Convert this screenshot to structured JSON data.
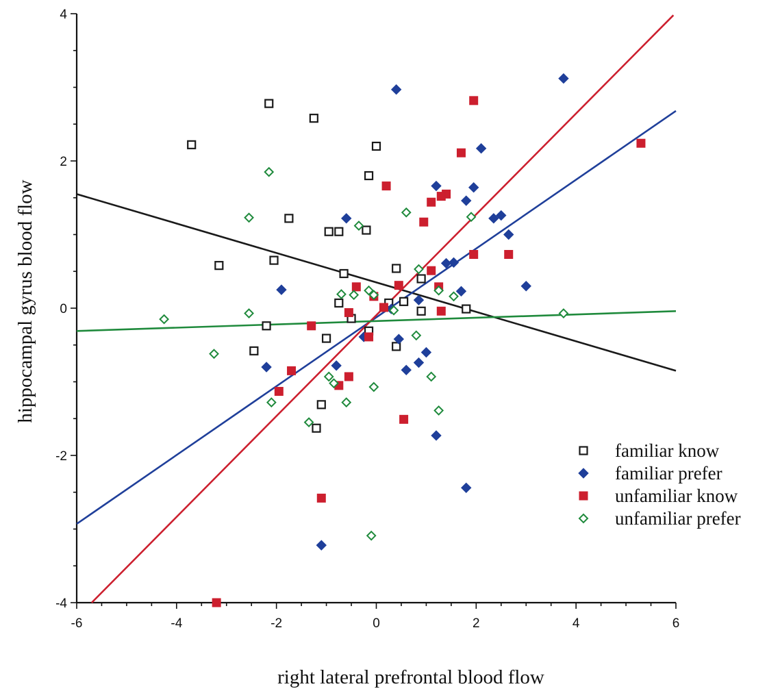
{
  "chart_data": {
    "type": "scatter",
    "xlabel": "right lateral prefrontal blood flow",
    "ylabel": "hippocampal gyrus blood flow",
    "xlim": [
      -6,
      6
    ],
    "ylim": [
      -4,
      4
    ],
    "x_ticks": [
      -6,
      -4,
      -2,
      0,
      2,
      4,
      6
    ],
    "y_ticks": [
      -4,
      -2,
      0,
      2,
      4
    ],
    "grid": false,
    "legend_position": "bottom-right",
    "series": [
      {
        "name": "familiar know",
        "marker": "open-square",
        "color": "#1a1a1a",
        "fit_line": [
          [
            -6,
            1.55
          ],
          [
            6,
            -0.85
          ]
        ],
        "points": [
          [
            -3.7,
            2.22
          ],
          [
            -2.15,
            2.78
          ],
          [
            -1.25,
            2.58
          ],
          [
            0.0,
            2.2
          ],
          [
            -0.15,
            1.8
          ],
          [
            -1.75,
            1.22
          ],
          [
            -0.95,
            1.04
          ],
          [
            -0.75,
            1.04
          ],
          [
            -0.2,
            1.06
          ],
          [
            -3.15,
            0.58
          ],
          [
            -2.05,
            0.65
          ],
          [
            0.4,
            0.54
          ],
          [
            -0.65,
            0.47
          ],
          [
            0.9,
            0.4
          ],
          [
            -0.75,
            0.07
          ],
          [
            0.25,
            0.07
          ],
          [
            0.55,
            0.09
          ],
          [
            0.9,
            -0.04
          ],
          [
            1.8,
            -0.01
          ],
          [
            -0.5,
            -0.14
          ],
          [
            -2.2,
            -0.24
          ],
          [
            -1.0,
            -0.41
          ],
          [
            -0.15,
            -0.31
          ],
          [
            0.4,
            -0.52
          ],
          [
            -2.45,
            -0.58
          ],
          [
            -1.1,
            -1.31
          ],
          [
            -1.2,
            -1.63
          ]
        ]
      },
      {
        "name": "familiar prefer",
        "marker": "filled-diamond",
        "color": "#1f3f9a",
        "fit_line": [
          [
            -6,
            -2.93
          ],
          [
            6,
            2.68
          ]
        ],
        "points": [
          [
            0.4,
            2.97
          ],
          [
            3.75,
            3.12
          ],
          [
            2.1,
            2.17
          ],
          [
            1.2,
            1.66
          ],
          [
            1.95,
            1.64
          ],
          [
            1.8,
            1.46
          ],
          [
            2.35,
            1.22
          ],
          [
            2.5,
            1.26
          ],
          [
            2.65,
            1.0
          ],
          [
            -0.6,
            1.22
          ],
          [
            1.4,
            0.61
          ],
          [
            1.55,
            0.62
          ],
          [
            1.7,
            0.23
          ],
          [
            3.0,
            0.3
          ],
          [
            -1.9,
            0.25
          ],
          [
            0.85,
            0.11
          ],
          [
            0.3,
            -0.01
          ],
          [
            -0.25,
            -0.39
          ],
          [
            0.45,
            -0.42
          ],
          [
            1.0,
            -0.6
          ],
          [
            0.85,
            -0.74
          ],
          [
            0.6,
            -0.84
          ],
          [
            -0.8,
            -0.78
          ],
          [
            -2.2,
            -0.8
          ],
          [
            1.2,
            -1.73
          ],
          [
            1.8,
            -2.44
          ],
          [
            -1.1,
            -3.22
          ]
        ]
      },
      {
        "name": "unfamiliar know",
        "marker": "filled-square",
        "color": "#cc1f2e",
        "fit_line": [
          [
            -5.7,
            -4.0
          ],
          [
            5.95,
            3.98
          ]
        ],
        "points": [
          [
            1.95,
            2.82
          ],
          [
            5.3,
            2.24
          ],
          [
            1.7,
            2.11
          ],
          [
            0.2,
            1.66
          ],
          [
            1.4,
            1.55
          ],
          [
            1.3,
            1.52
          ],
          [
            1.1,
            1.44
          ],
          [
            0.95,
            1.17
          ],
          [
            1.95,
            0.73
          ],
          [
            2.65,
            0.73
          ],
          [
            1.1,
            0.51
          ],
          [
            -0.4,
            0.29
          ],
          [
            0.45,
            0.31
          ],
          [
            1.25,
            0.29
          ],
          [
            -0.05,
            0.16
          ],
          [
            0.15,
            0.01
          ],
          [
            1.3,
            -0.04
          ],
          [
            -0.55,
            -0.06
          ],
          [
            -1.3,
            -0.24
          ],
          [
            -0.15,
            -0.39
          ],
          [
            -1.7,
            -0.85
          ],
          [
            -0.55,
            -0.93
          ],
          [
            -0.75,
            -1.05
          ],
          [
            -1.95,
            -1.13
          ],
          [
            0.55,
            -1.51
          ],
          [
            -1.1,
            -2.58
          ],
          [
            -3.2,
            -4.0
          ]
        ]
      },
      {
        "name": "unfamiliar prefer",
        "marker": "open-diamond",
        "color": "#1f8a3c",
        "fit_line": [
          [
            -6,
            -0.31
          ],
          [
            6,
            -0.04
          ]
        ],
        "points": [
          [
            -2.15,
            1.85
          ],
          [
            -2.55,
            1.23
          ],
          [
            0.6,
            1.3
          ],
          [
            1.9,
            1.24
          ],
          [
            -0.35,
            1.12
          ],
          [
            0.85,
            0.53
          ],
          [
            -0.15,
            0.24
          ],
          [
            -0.7,
            0.19
          ],
          [
            -0.45,
            0.18
          ],
          [
            -0.05,
            0.18
          ],
          [
            1.25,
            0.24
          ],
          [
            1.55,
            0.16
          ],
          [
            0.35,
            -0.03
          ],
          [
            -2.55,
            -0.07
          ],
          [
            -4.25,
            -0.15
          ],
          [
            3.75,
            -0.07
          ],
          [
            0.8,
            -0.37
          ],
          [
            -3.25,
            -0.62
          ],
          [
            1.1,
            -0.93
          ],
          [
            -0.95,
            -0.93
          ],
          [
            -0.85,
            -1.02
          ],
          [
            -0.05,
            -1.07
          ],
          [
            -2.1,
            -1.28
          ],
          [
            -0.6,
            -1.28
          ],
          [
            1.25,
            -1.39
          ],
          [
            -1.35,
            -1.55
          ],
          [
            -0.1,
            -3.09
          ]
        ]
      }
    ]
  }
}
